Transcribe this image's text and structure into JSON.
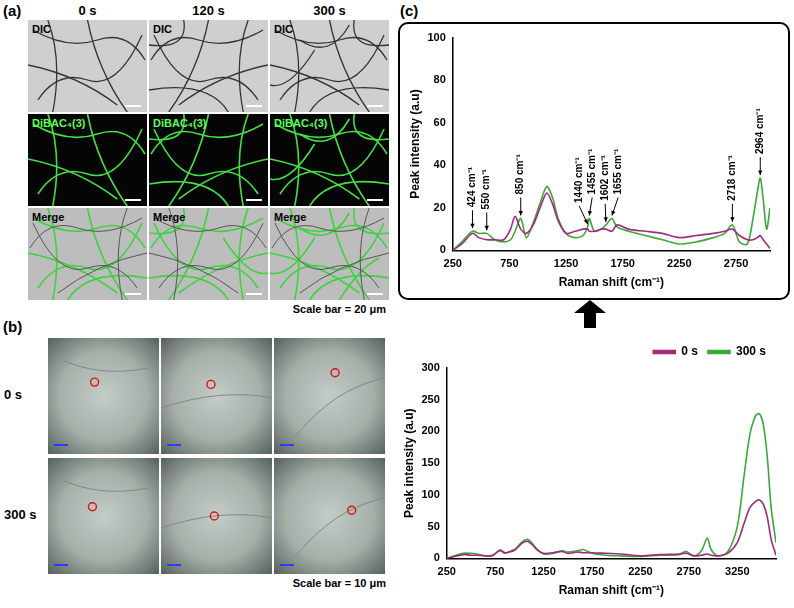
{
  "panels": [
    {
      "label": "(a)",
      "columns": [
        "0 s",
        "120 s",
        "300 s"
      ],
      "rows": [
        "DIC",
        "DiBAC₄(3)",
        "Merge"
      ],
      "scale_bar": "Scale bar = 20 μm"
    },
    {
      "label": "(b)",
      "rows": [
        "0 s",
        "300 s"
      ],
      "scale_bar": "Scale bar = 10 μm"
    },
    {
      "label": "(c)"
    }
  ],
  "chart_data": [
    {
      "type": "line",
      "x_label": "Raman shift (cm⁻¹)",
      "y_label": "Peak intensity (a.u)",
      "xlim": [
        250,
        3050
      ],
      "xticks": [
        250,
        750,
        1250,
        1750,
        2250,
        2750
      ],
      "ylim": [
        0,
        100
      ],
      "yticks": [
        0,
        20,
        40,
        60,
        80,
        100
      ],
      "grid": false,
      "series": [
        {
          "color": "#a3297f",
          "x": [
            250,
            330,
            424,
            480,
            550,
            620,
            700,
            760,
            800,
            850,
            900,
            960,
            1020,
            1080,
            1130,
            1180,
            1250,
            1330,
            1400,
            1440,
            1455,
            1500,
            1560,
            1602,
            1655,
            1700,
            1800,
            1950,
            2100,
            2250,
            2400,
            2550,
            2650,
            2718,
            2780,
            2850,
            2900,
            2940,
            2964,
            2990,
            3020,
            3050
          ],
          "values": [
            0,
            3,
            8,
            6,
            5,
            5,
            5,
            10,
            16,
            10,
            8,
            12,
            20,
            27,
            22,
            14,
            8,
            9,
            10,
            10,
            9,
            9,
            10,
            10,
            9,
            12,
            10,
            9,
            8,
            6,
            7,
            8,
            9,
            10,
            7,
            5,
            5,
            6,
            7,
            5,
            3,
            1
          ]
        },
        {
          "color": "#3aa83a",
          "x": [
            250,
            330,
            424,
            480,
            550,
            620,
            700,
            760,
            800,
            850,
            900,
            960,
            1020,
            1080,
            1130,
            1180,
            1250,
            1330,
            1400,
            1440,
            1455,
            1500,
            1560,
            1602,
            1655,
            1700,
            1800,
            1950,
            2100,
            2250,
            2400,
            2550,
            2650,
            2718,
            2780,
            2850,
            2900,
            2940,
            2964,
            2990,
            3020,
            3050
          ],
          "values": [
            0,
            4,
            9,
            8,
            8,
            5,
            4,
            5,
            9,
            15,
            6,
            13,
            22,
            30,
            25,
            15,
            8,
            6,
            7,
            11,
            15,
            9,
            10,
            12,
            15,
            11,
            9,
            7,
            5,
            3,
            4,
            6,
            8,
            12,
            4,
            3,
            15,
            28,
            34,
            24,
            10,
            20
          ]
        }
      ],
      "annotations": [
        {
          "text": "424 cm⁻¹",
          "x": 424,
          "y": 9
        },
        {
          "text": "550 cm⁻¹",
          "x": 550,
          "y": 8
        },
        {
          "text": "850 cm⁻¹",
          "x": 850,
          "y": 15
        },
        {
          "text": "1440 cm⁻¹",
          "x": 1440,
          "y": 11
        },
        {
          "text": "1455 cm⁻¹",
          "x": 1455,
          "y": 15
        },
        {
          "text": "1602 cm⁻¹",
          "x": 1602,
          "y": 12
        },
        {
          "text": "1655 cm⁻¹",
          "x": 1655,
          "y": 15
        },
        {
          "text": "2718 cm⁻¹",
          "x": 2718,
          "y": 12
        },
        {
          "text": "2964 cm⁻¹",
          "x": 2964,
          "y": 34
        }
      ]
    },
    {
      "type": "line",
      "x_label": "Raman shift (cm⁻¹)",
      "y_label": "Peak intensity (a.u)",
      "xlim": [
        250,
        3650
      ],
      "xticks": [
        250,
        750,
        1250,
        1750,
        2250,
        2750,
        3250
      ],
      "ylim": [
        0,
        300
      ],
      "yticks": [
        0,
        50,
        100,
        150,
        200,
        250,
        300
      ],
      "grid": false,
      "legend": "upper right",
      "series": [
        {
          "name": "0 s",
          "color": "#a3297f",
          "x": [
            250,
            330,
            420,
            500,
            560,
            650,
            720,
            800,
            850,
            900,
            960,
            1020,
            1080,
            1130,
            1180,
            1250,
            1350,
            1440,
            1500,
            1600,
            1660,
            1750,
            1900,
            2050,
            2250,
            2450,
            2650,
            2720,
            2800,
            2880,
            2940,
            2980,
            3050,
            3150,
            3250,
            3320,
            3380,
            3440,
            3480,
            3520,
            3560,
            3600,
            3650
          ],
          "values": [
            0,
            3,
            6,
            5,
            5,
            4,
            4,
            13,
            9,
            10,
            14,
            23,
            27,
            22,
            14,
            8,
            9,
            11,
            8,
            10,
            9,
            9,
            8,
            7,
            4,
            6,
            7,
            8,
            4,
            5,
            7,
            5,
            4,
            8,
            25,
            55,
            80,
            90,
            92,
            85,
            65,
            30,
            5
          ]
        },
        {
          "name": "300 s",
          "color": "#3aa83a",
          "x": [
            250,
            330,
            420,
            500,
            560,
            650,
            720,
            800,
            850,
            900,
            960,
            1020,
            1080,
            1130,
            1180,
            1250,
            1350,
            1440,
            1500,
            1600,
            1660,
            1750,
            1900,
            2050,
            2250,
            2450,
            2650,
            2720,
            2800,
            2880,
            2940,
            2980,
            3050,
            3150,
            3250,
            3320,
            3380,
            3440,
            3480,
            3520,
            3560,
            3600,
            3650
          ],
          "values": [
            0,
            4,
            8,
            8,
            7,
            4,
            5,
            12,
            8,
            11,
            15,
            25,
            30,
            24,
            15,
            7,
            8,
            12,
            10,
            12,
            14,
            8,
            5,
            4,
            3,
            5,
            6,
            11,
            4,
            12,
            32,
            14,
            4,
            10,
            50,
            130,
            195,
            225,
            228,
            210,
            160,
            80,
            25
          ]
        }
      ]
    }
  ]
}
